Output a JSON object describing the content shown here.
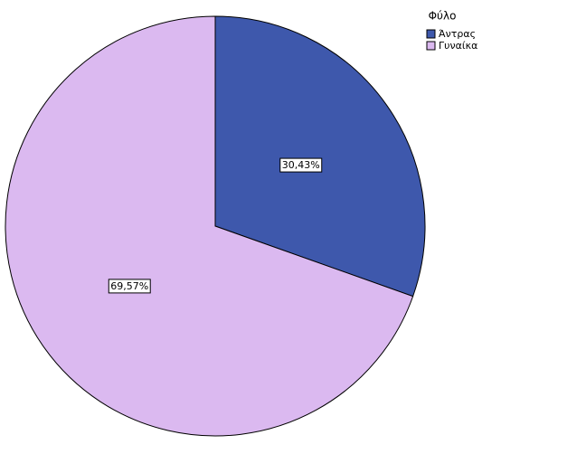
{
  "chart_data": {
    "type": "pie",
    "legend_title": "Φύλο",
    "categories": [
      "Άντρας",
      "Γυναίκα"
    ],
    "values": [
      30.43,
      69.57
    ],
    "value_labels": [
      "30,43%",
      "69,57%"
    ],
    "colors": [
      "#3e58ac",
      "#dbb9f0"
    ],
    "legend": "top-right"
  }
}
